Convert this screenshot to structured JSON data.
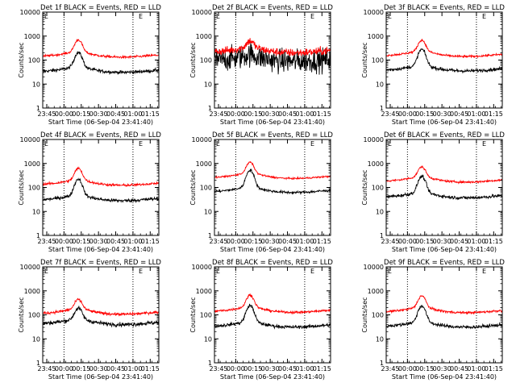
{
  "chart_data": {
    "type": "line",
    "layout": {
      "rows": 3,
      "cols": 3
    },
    "xlabel": "Start Time (06-Sep-04 23:41:40)",
    "ylabel": "Counts/sec",
    "yscale": "log",
    "ylim": [
      1,
      10000
    ],
    "y_tick_labels": [
      "1",
      "10",
      "100",
      "1000",
      "10000"
    ],
    "x_tick_labels": [
      "23:45",
      "00:00",
      "00:15",
      "00:30",
      "00:45",
      "01:00",
      "01:15"
    ],
    "x_tick_minutes": [
      0,
      15,
      30,
      45,
      60,
      75,
      90
    ],
    "x_range_minutes": [
      -3.5,
      97.5
    ],
    "vertical_dotted_lines_minutes": [
      15,
      75
    ],
    "legend_markers": [
      "L",
      "E"
    ],
    "series_colors": {
      "events": "#000000",
      "lld": "#ff0000"
    },
    "panels": [
      {
        "title": "Det 1f BLACK = Events, RED = LLD",
        "events": {
          "base": 35,
          "peak": 190,
          "noise": 0.05
        },
        "lld": {
          "base": 150,
          "peak": 630,
          "noise": 0.035
        }
      },
      {
        "title": "Det 2f BLACK = Events, RED = LLD",
        "events": {
          "base": 100,
          "peak": 130,
          "noise": 0.35
        },
        "lld": {
          "base": 230,
          "peak": 520,
          "noise": 0.12
        }
      },
      {
        "title": "Det 3f BLACK = Events, RED = LLD",
        "events": {
          "base": 40,
          "peak": 260,
          "noise": 0.05
        },
        "lld": {
          "base": 160,
          "peak": 600,
          "noise": 0.03
        }
      },
      {
        "title": "Det 4f BLACK = Events, RED = LLD",
        "events": {
          "base": 32,
          "peak": 210,
          "noise": 0.05
        },
        "lld": {
          "base": 140,
          "peak": 560,
          "noise": 0.035
        }
      },
      {
        "title": "Det 5f BLACK = Events, RED = LLD",
        "events": {
          "base": 70,
          "peak": 500,
          "noise": 0.04
        },
        "lld": {
          "base": 270,
          "peak": 1000,
          "noise": 0.025
        }
      },
      {
        "title": "Det 6f BLACK = Events, RED = LLD",
        "events": {
          "base": 42,
          "peak": 270,
          "noise": 0.05
        },
        "lld": {
          "base": 190,
          "peak": 640,
          "noise": 0.03
        }
      },
      {
        "title": "Det 7f BLACK = Events, RED = LLD",
        "events": {
          "base": 45,
          "peak": 170,
          "noise": 0.06
        },
        "lld": {
          "base": 120,
          "peak": 380,
          "noise": 0.04
        }
      },
      {
        "title": "Det 8f BLACK = Events, RED = LLD",
        "events": {
          "base": 35,
          "peak": 230,
          "noise": 0.05
        },
        "lld": {
          "base": 145,
          "peak": 600,
          "noise": 0.035
        }
      },
      {
        "title": "Det 9f BLACK = Events, RED = LLD",
        "events": {
          "base": 35,
          "peak": 220,
          "noise": 0.05
        },
        "lld": {
          "base": 140,
          "peak": 560,
          "noise": 0.035
        }
      }
    ]
  }
}
